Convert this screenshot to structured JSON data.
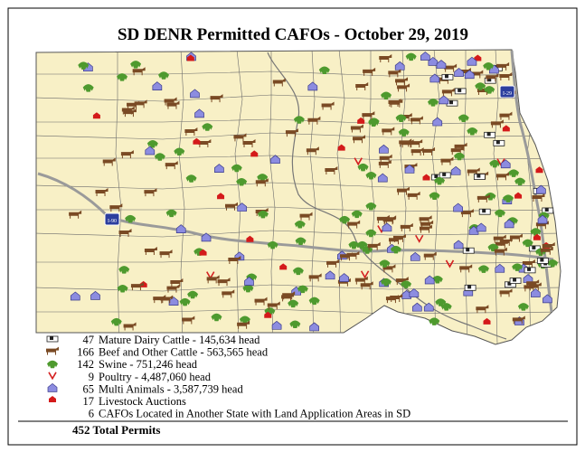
{
  "title": "SD DENR Permitted CAFOs - October 29, 2019",
  "highway_labels": [
    "I-90",
    "I-29"
  ],
  "legend": [
    {
      "count": 47,
      "label": "Mature Dairy Cattle - 145,634 head"
    },
    {
      "count": 166,
      "label": "Beef and Other Cattle - 563,565 head"
    },
    {
      "count": 142,
      "label": "Swine - 751,246 head"
    },
    {
      "count": 9,
      "label": "Poultry - 4,487,060 head"
    },
    {
      "count": 65,
      "label": "Multi Animals - 3,587,739 head"
    },
    {
      "count": 17,
      "label": "Livestock Auctions"
    },
    {
      "count": 6,
      "label": "CAFOs Located in Another State with Land Application Areas in SD"
    }
  ],
  "total": "452 Total Permits"
}
